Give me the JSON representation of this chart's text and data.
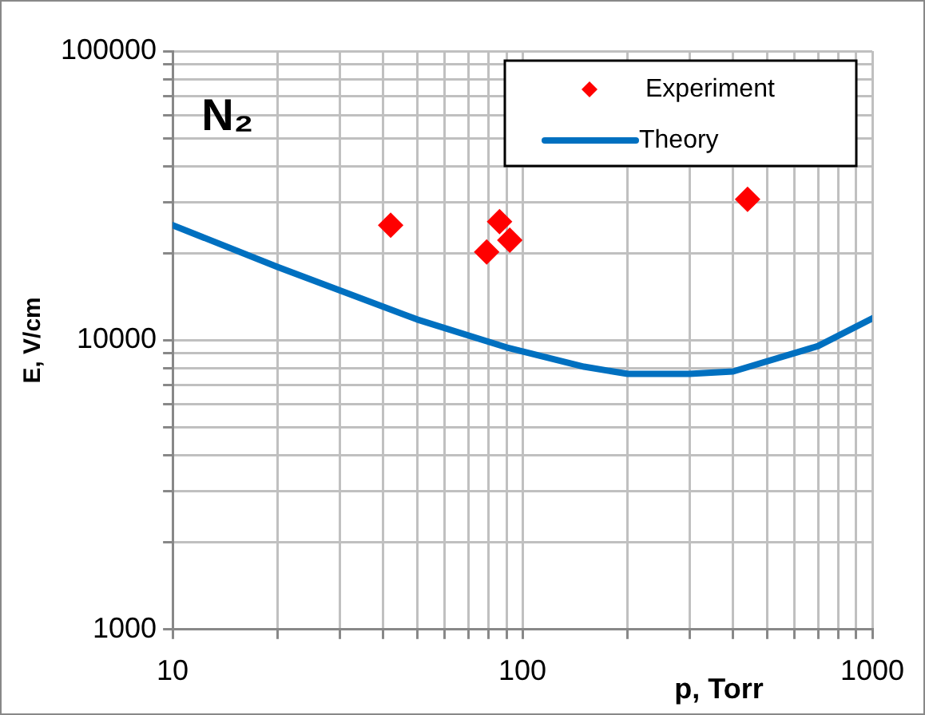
{
  "chart_data": {
    "type": "scatter",
    "annotations": [
      "N₂"
    ],
    "xlabel": "p, Torr",
    "ylabel": "E, V/cm",
    "log": "xy",
    "grid": true,
    "legend": "top right",
    "xlim": [
      10,
      1000
    ],
    "ylim": [
      1000,
      100000
    ],
    "xticks": [
      10,
      {
        "value": 20,
        "label": null
      },
      {
        "value": 30,
        "label": null
      },
      {
        "value": 40,
        "label": null
      },
      {
        "value": 50,
        "label": null
      },
      {
        "value": 60,
        "label": null
      },
      {
        "value": 70,
        "label": null
      },
      {
        "value": 80,
        "label": null
      },
      {
        "value": 90,
        "label": null
      },
      100,
      {
        "value": 200,
        "label": null
      },
      {
        "value": 300,
        "label": null
      },
      {
        "value": 400,
        "label": null
      },
      {
        "value": 500,
        "label": null
      },
      {
        "value": 600,
        "label": null
      },
      {
        "value": 700,
        "label": null
      },
      {
        "value": 800,
        "label": null
      },
      {
        "value": 900,
        "label": null
      },
      1000
    ],
    "yticks": [
      1000,
      {
        "value": 2000,
        "label": null
      },
      {
        "value": 3000,
        "label": null
      },
      {
        "value": 4000,
        "label": null
      },
      {
        "value": 5000,
        "label": null
      },
      {
        "value": 6000,
        "label": null
      },
      {
        "value": 7000,
        "label": null
      },
      {
        "value": 8000,
        "label": null
      },
      {
        "value": 9000,
        "label": null
      },
      10000,
      {
        "value": 20000,
        "label": null
      },
      {
        "value": 30000,
        "label": null
      },
      {
        "value": 40000,
        "label": null
      },
      {
        "value": 50000,
        "label": null
      },
      {
        "value": 60000,
        "label": null
      },
      {
        "value": 70000,
        "label": null
      },
      {
        "value": 80000,
        "label": null
      },
      {
        "value": 90000,
        "label": null
      },
      100000
    ],
    "series": [
      {
        "name": "Experiment",
        "marker": "diamond",
        "color": "#ff0000",
        "x": [
          42,
          86,
          79,
          92,
          440
        ],
        "values": [
          25000,
          25700,
          20200,
          22200,
          30700
        ]
      },
      {
        "name": "Theory",
        "type": "line",
        "marker": "none",
        "line_style": "solid",
        "color": "#0070c0",
        "x": [
          10,
          20,
          50,
          90,
          150,
          200,
          300,
          400,
          700,
          1000
        ],
        "values": [
          25000,
          17900,
          11800,
          9450,
          8100,
          7650,
          7650,
          7800,
          9550,
          11900
        ]
      }
    ]
  }
}
